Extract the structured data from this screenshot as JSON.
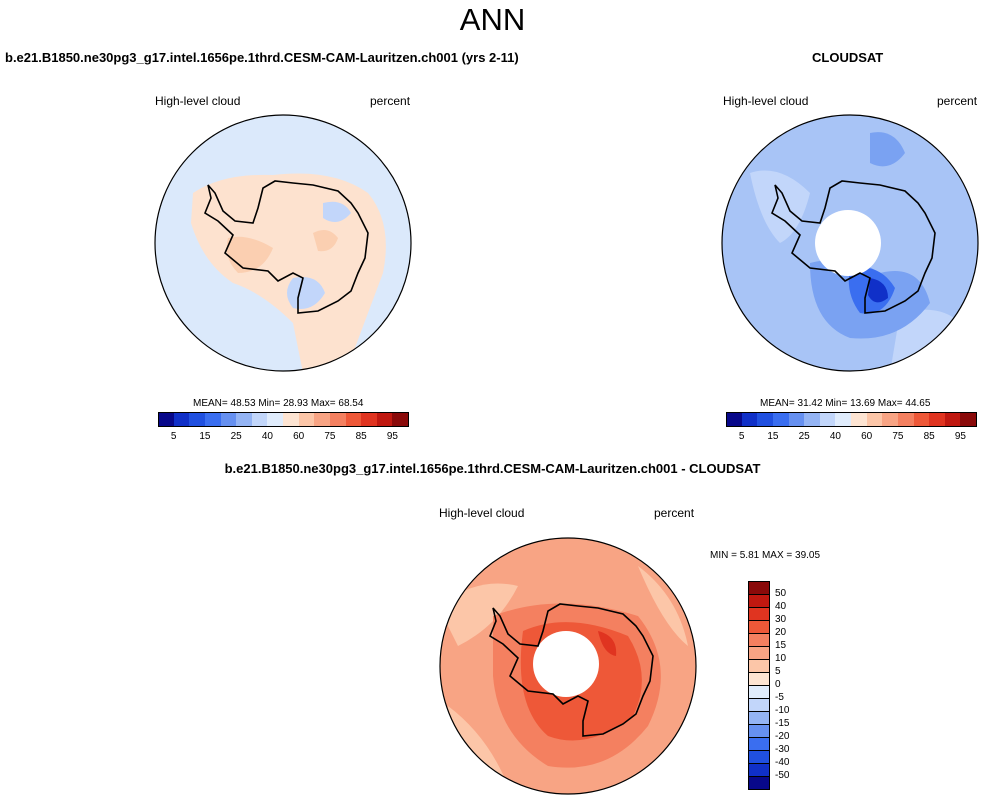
{
  "title": "ANN",
  "top_left": {
    "case_title": "b.e21.B1850.ne30pg3_g17.intel.1656pe.1thrd.CESM-CAM-Lauritzen.ch001 (yrs 2-11)",
    "var_label": "High-level cloud",
    "units": "percent",
    "mean_label": "MEAN=",
    "mean": "48.53",
    "min_label": "Min=",
    "min": "28.93",
    "max_label": "Max=",
    "max": "68.54"
  },
  "top_right": {
    "case_title": "CLOUDSAT",
    "var_label": "High-level cloud",
    "units": "percent",
    "mean_label": "MEAN=",
    "mean": "31.42",
    "min_label": "Min=",
    "min": "13.69",
    "max_label": "Max=",
    "max": "44.65"
  },
  "diff": {
    "case_title": "b.e21.B1850.ne30pg3_g17.intel.1656pe.1thrd.CESM-CAM-Lauritzen.ch001 - CLOUDSAT",
    "var_label": "High-level cloud",
    "units": "percent",
    "minmax_text": "MIN =   5.81 MAX =  39.05"
  },
  "colors": {
    "abs_scale": [
      "#08088a",
      "#1030c8",
      "#2050e0",
      "#3a6ef0",
      "#6690f0",
      "#94b4f4",
      "#c2d6fa",
      "#e0ecfc",
      "#fde4d2",
      "#fcc6a8",
      "#f8a484",
      "#f48060",
      "#ee5838",
      "#e03420",
      "#c01810",
      "#8a0a0a"
    ],
    "diff_scale": [
      "#08088a",
      "#1030c8",
      "#2050e0",
      "#3a6ef0",
      "#6690f0",
      "#94b4f4",
      "#c2d6fa",
      "#e0ecfc",
      "#fde4d2",
      "#fcc6a8",
      "#f8a484",
      "#f48060",
      "#ee5838",
      "#e03420",
      "#c01810",
      "#8a0a0a"
    ]
  },
  "chart_data": [
    {
      "type": "heatmap",
      "title": "High-level cloud",
      "subtitle": "b.e21.B1850.ne30pg3_g17.intel.1656pe.1thrd.CESM-CAM-Lauritzen.ch001 (yrs 2-11)",
      "units": "percent",
      "projection": "south polar stereographic",
      "colorbar_levels": [
        5,
        10,
        15,
        20,
        25,
        30,
        35,
        40,
        50,
        60,
        65,
        70,
        75,
        80,
        85,
        90,
        95
      ],
      "colorbar_tick_labels": [
        "5",
        "15",
        "25",
        "40",
        "60",
        "75",
        "85",
        "95"
      ],
      "mean": 48.53,
      "min": 28.93,
      "max": 68.54
    },
    {
      "type": "heatmap",
      "title": "High-level cloud",
      "subtitle": "CLOUDSAT",
      "units": "percent",
      "projection": "south polar stereographic",
      "colorbar_levels": [
        5,
        10,
        15,
        20,
        25,
        30,
        35,
        40,
        50,
        60,
        65,
        70,
        75,
        80,
        85,
        90,
        95
      ],
      "colorbar_tick_labels": [
        "5",
        "15",
        "25",
        "40",
        "60",
        "75",
        "85",
        "95"
      ],
      "mean": 31.42,
      "min": 13.69,
      "max": 44.65
    },
    {
      "type": "heatmap",
      "title": "High-level cloud",
      "subtitle": "b.e21.B1850.ne30pg3_g17.intel.1656pe.1thrd.CESM-CAM-Lauritzen.ch001 - CLOUDSAT",
      "units": "percent",
      "projection": "south polar stereographic",
      "colorbar_tick_labels": [
        "50",
        "40",
        "30",
        "20",
        "15",
        "10",
        "5",
        "0",
        "-5",
        "-10",
        "-15",
        "-20",
        "-30",
        "-40",
        "-50"
      ],
      "min": 5.81,
      "max": 39.05
    }
  ]
}
